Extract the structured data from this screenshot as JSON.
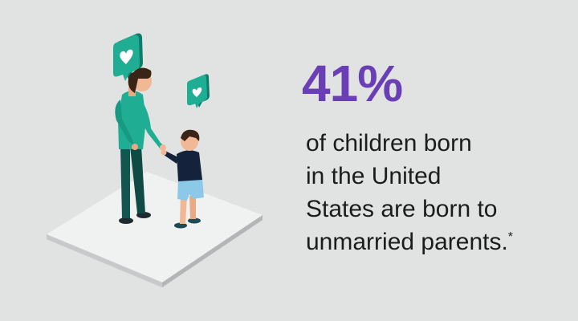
{
  "stat": {
    "value": "41%"
  },
  "caption": {
    "lines": [
      "of children born",
      "in the United",
      "States are born to",
      "unmarried parents."
    ],
    "footnote_marker": "*"
  },
  "colors": {
    "background": "#e1e2e2",
    "accent": "#6a3fb5",
    "teal": "#1a9e88",
    "text": "#1c1c1c"
  },
  "illustration": {
    "icons": [
      "heart-speech-bubble-icon",
      "heart-speech-bubble-icon"
    ],
    "figures": [
      "adult-figure",
      "child-figure"
    ]
  }
}
